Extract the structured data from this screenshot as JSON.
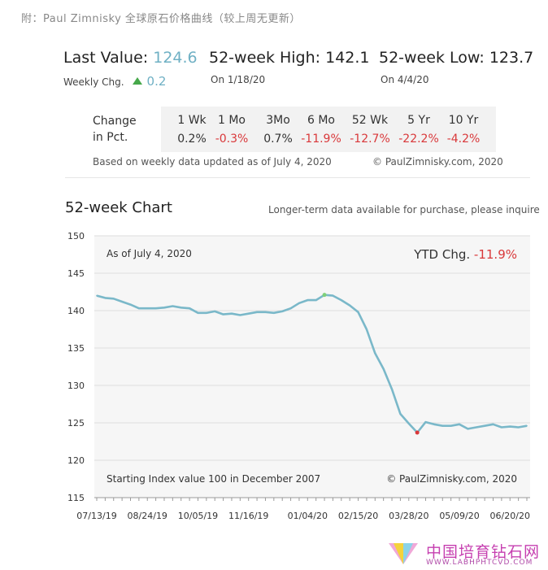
{
  "header": {
    "title": "附：Paul Zimnisky 全球原石价格曲线（较上周无更新）"
  },
  "summary": {
    "last_value_label": "Last Value:",
    "last_value": "124.6",
    "weekly_chg_label": "Weekly Chg.",
    "weekly_chg": "0.2",
    "high_label": "52-week High:",
    "high_value": "142.1",
    "high_date": "On 1/18/20",
    "low_label": "52-week Low:",
    "low_value": "123.7",
    "low_date": "On 4/4/20"
  },
  "pct_table": {
    "label_line1": "Change",
    "label_line2": "in Pct.",
    "headers": [
      "1 Wk",
      "1 Mo",
      "3Mo",
      "6 Mo",
      "52 Wk",
      "5 Yr",
      "10 Yr"
    ],
    "values": [
      "0.2%",
      "-0.3%",
      "0.7%",
      "-11.9%",
      "-12.7%",
      "-22.2%",
      "-4.2%"
    ],
    "negative": [
      false,
      true,
      false,
      true,
      true,
      true,
      true
    ]
  },
  "footer_note": "Based on weekly data updated as of July 4, 2020",
  "copyright": "© PaulZimnisky.com, 2020",
  "chart_header": {
    "title": "52-week Chart",
    "note": "Longer-term data available for purchase, please inquire"
  },
  "colors": {
    "line": "#7ab8c9",
    "accent": "#6fb0c4",
    "negative": "#d9383a",
    "up": "#46a84a",
    "high_marker": "#7fd07a",
    "low_marker": "#d9383a"
  },
  "watermark": {
    "cn": "中国培育钻石网",
    "url": "WWW.LABHPHTCVD.COM"
  },
  "chart_data": {
    "type": "line",
    "as_of": "As of July 4, 2020",
    "ytd_label": "YTD Chg.",
    "ytd_value": "-11.9%",
    "bottom_left": "Starting Index value 100 in December 2007",
    "bottom_right": "© PaulZimnisky.com, 2020",
    "ylim": [
      115,
      150
    ],
    "yticks": [
      115,
      120,
      125,
      130,
      135,
      140,
      145,
      150
    ],
    "xtick_labels": [
      "07/13/19",
      "08/24/19",
      "10/05/19",
      "11/16/19",
      "01/04/20",
      "02/15/20",
      "03/28/20",
      "05/09/20",
      "06/20/20"
    ],
    "xtick_index": [
      0,
      6,
      12,
      18,
      25,
      31,
      37,
      43,
      49
    ],
    "grid": true,
    "high_index": 27,
    "low_index": 38,
    "series": [
      {
        "values": [
          142.0,
          141.7,
          141.6,
          141.2,
          140.8,
          140.3,
          140.3,
          140.3,
          140.4,
          140.6,
          140.4,
          140.3,
          139.7,
          139.7,
          139.9,
          139.5,
          139.6,
          139.4,
          139.6,
          139.8,
          139.8,
          139.7,
          139.9,
          140.3,
          141.0,
          141.4,
          141.4,
          142.1,
          142.0,
          141.4,
          140.7,
          139.8,
          137.5,
          134.3,
          132.2,
          129.5,
          126.2,
          124.9,
          123.7,
          125.1,
          124.8,
          124.6,
          124.6,
          124.8,
          124.2,
          124.4,
          124.6,
          124.8,
          124.4,
          124.5,
          124.4,
          124.6
        ]
      }
    ]
  }
}
